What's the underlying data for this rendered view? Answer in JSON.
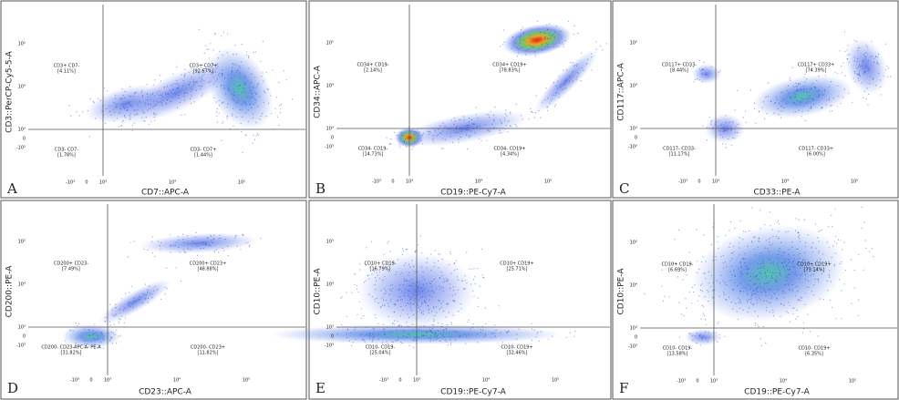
{
  "panels": [
    {
      "letter": "A",
      "ylabel": "CD3::PerCP-Cy5-5-A",
      "xlabel": "CD7::APC-A",
      "xticks": [
        "-10³",
        "0",
        "10³",
        "10⁴",
        "10⁵"
      ],
      "yticks": [
        "10⁵",
        "10⁴",
        "10³",
        "0",
        "-10³"
      ],
      "quadrants": [
        {
          "name": "CD3+ CD7-",
          "percent": "[4.11%]"
        },
        {
          "name": "CD3+ CD7+",
          "percent": "[92.67%]"
        },
        {
          "name": "CD3- CD7-",
          "percent": "[1.78%]"
        },
        {
          "name": "CD3- CD7+",
          "percent": "[1.44%]"
        }
      ]
    },
    {
      "letter": "B",
      "ylabel": "CD34::APC-A",
      "xlabel": "CD19::PE-Cy7-A",
      "xticks": [
        "-10³",
        "0",
        "10³",
        "10⁴",
        "10⁵"
      ],
      "yticks": [
        "10⁵",
        "10⁴",
        "10³",
        "0",
        "-10³"
      ],
      "quadrants": [
        {
          "name": "CD34+ CD19-",
          "percent": "[2.14%]"
        },
        {
          "name": "CD34+ CD19+",
          "percent": "[78.83%]"
        },
        {
          "name": "CD34- CD19-",
          "percent": "[14.73%]"
        },
        {
          "name": "CD34- CD19+",
          "percent": "[4.34%]"
        }
      ]
    },
    {
      "letter": "C",
      "ylabel": "CD117::APC-A",
      "xlabel": "CD33::PE-A",
      "xticks": [
        "-10³",
        "0",
        "10³",
        "10⁴",
        "10⁵"
      ],
      "yticks": [
        "10⁵",
        "10⁴",
        "10³",
        "0",
        "-10³"
      ],
      "quadrants": [
        {
          "name": "CD117+ CD33-",
          "percent": "[8.44%]"
        },
        {
          "name": "CD117+ CD33+",
          "percent": "[74.39%]"
        },
        {
          "name": "CD117- CD33-",
          "percent": "[11.17%]"
        },
        {
          "name": "CD117- CD33+",
          "percent": "[6.00%]"
        }
      ]
    },
    {
      "letter": "D",
      "ylabel": "CD200::PE-A",
      "xlabel": "CD23::APC-A",
      "xticks": [
        "-10³",
        "0",
        "10³",
        "10⁴",
        "10⁵"
      ],
      "yticks": [
        "10⁵",
        "10⁴",
        "10³",
        "0",
        "-10³"
      ],
      "quadrants": [
        {
          "name": "CD200+ CD23-",
          "percent": "[7.49%]"
        },
        {
          "name": "CD200+ CD23+",
          "percent": "[48.88%]"
        },
        {
          "name": "CD200- CD23-APC-A- PE-A",
          "percent": "[31.82%]"
        },
        {
          "name": "CD200- CD23+",
          "percent": "[11.82%]"
        }
      ]
    },
    {
      "letter": "E",
      "ylabel": "CD10::PE-A",
      "xlabel": "CD19::PE-Cy7-A",
      "xticks": [
        "-10³",
        "0",
        "10³",
        "10⁴",
        "10⁵"
      ],
      "yticks": [
        "10⁵",
        "10⁴",
        "10³",
        "0",
        "-10³"
      ],
      "quadrants": [
        {
          "name": "CD10+ CD19-",
          "percent": "[16.79%]"
        },
        {
          "name": "CD10+ CD19+",
          "percent": "[25.71%]"
        },
        {
          "name": "CD10- CD19-",
          "percent": "[25.04%]"
        },
        {
          "name": "CD10- CD19+",
          "percent": "[32.46%]"
        }
      ]
    },
    {
      "letter": "F",
      "ylabel": "CD10::PE-A",
      "xlabel": "CD19::PE-Cy7-A",
      "xticks": [
        "-10³",
        "0",
        "10³",
        "10⁴",
        "10⁵"
      ],
      "yticks": [
        "10⁵",
        "10⁴",
        "10³",
        "0",
        "-10³"
      ],
      "quadrants": [
        {
          "name": "CD10+ CD19-",
          "percent": "[6.69%]"
        },
        {
          "name": "CD10+ CD19+",
          "percent": "[73.14%]"
        },
        {
          "name": "CD10- CD19-",
          "percent": "[13.58%]"
        },
        {
          "name": "CD10- CD19+",
          "percent": "[6.35%]"
        }
      ]
    }
  ]
}
